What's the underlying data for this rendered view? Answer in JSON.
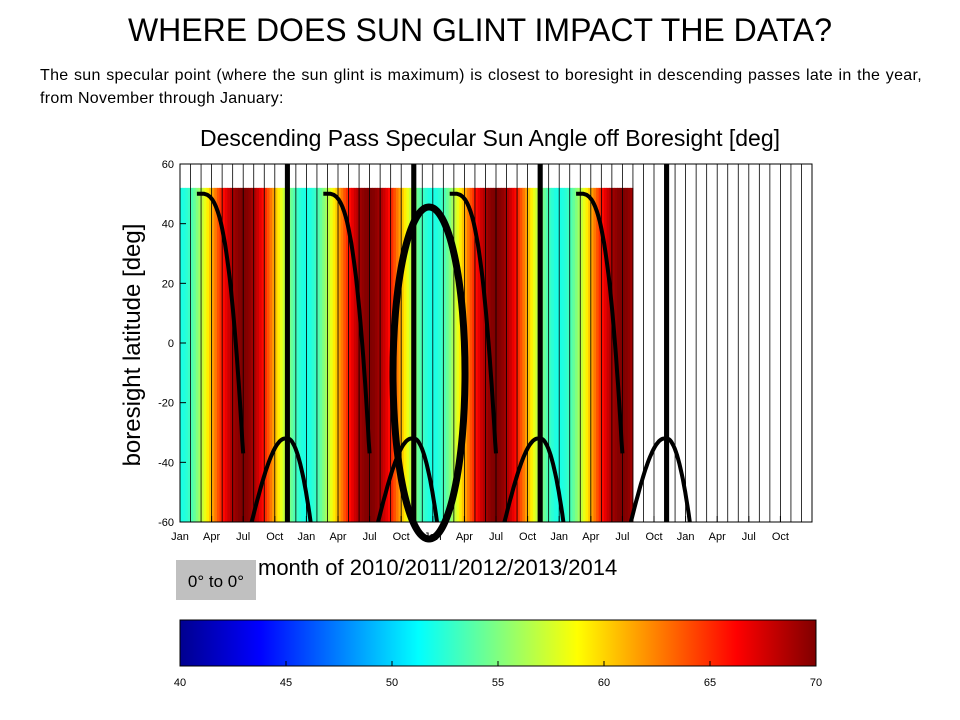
{
  "slide": {
    "title": "WHERE DOES SUN GLINT IMPACT THE DATA?",
    "text": "The sun specular point (where the sun glint is maximum) is closest to boresight in descending passes late in the year, from November through January:"
  },
  "chart_data": {
    "type": "heatmap",
    "title": "Descending Pass Specular Sun Angle off Boresight [deg]",
    "xlabel": "month of 2010/2011/2012/2013/2014",
    "ylabel": "boresight latitude [deg]",
    "x_ticks": [
      "Jan",
      "Apr",
      "Jul",
      "Oct",
      "Jan",
      "Apr",
      "Jul",
      "Oct",
      "Jan",
      "Apr",
      "Jul",
      "Oct",
      "Jan",
      "Apr",
      "Jul",
      "Oct",
      "Jan",
      "Apr",
      "Jul",
      "Oct"
    ],
    "y_ticks": [
      60,
      40,
      20,
      0,
      -20,
      -40,
      -60
    ],
    "ylim": [
      -60,
      60
    ],
    "xlim_months": [
      0,
      60
    ],
    "data_extent_months": [
      0,
      43
    ],
    "grid": "monthly vertical lines",
    "colorbar": {
      "ticks": [
        40,
        45,
        50,
        55,
        60,
        65,
        70
      ],
      "range": [
        40,
        70
      ],
      "colormap": "jet",
      "min_color": "#00008f",
      "max_color": "#800000"
    },
    "min_value_per_year_month": 52,
    "max_value_per_year_month": 70,
    "contour_label": "0° to 0°",
    "highlight": {
      "shape": "ellipse",
      "color": "#000000",
      "center_month": 24.5,
      "meaning": "Nov-Jan minimum near boresight"
    }
  }
}
